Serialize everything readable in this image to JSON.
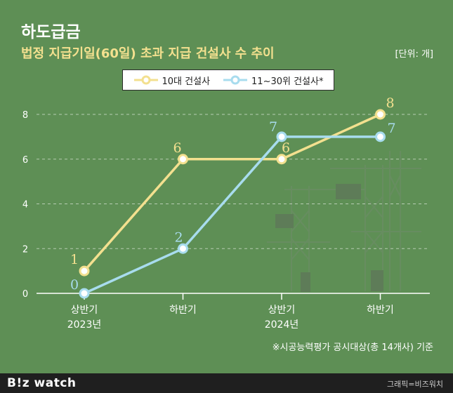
{
  "title": "하도급금",
  "subtitle": "법정 지급기일(60일) 초과 지급 건설사 수 추이",
  "unit": "[단위: 개]",
  "legend": {
    "s1": "10대 건설사",
    "s2": "11~30위 건설사*"
  },
  "x_labels": [
    {
      "line1": "상반기",
      "line2": "2023년"
    },
    {
      "line1": "하반기",
      "line2": ""
    },
    {
      "line1": "상반기",
      "line2": "2024년"
    },
    {
      "line1": "하반기",
      "line2": ""
    }
  ],
  "footnote": "※시공능력평가 공시대상(총 14개사) 기준",
  "brand": "B!z watch",
  "credit": "그래픽=비즈워치",
  "colors": {
    "background": "#5e8f55",
    "series1": "#f3e08f",
    "series2": "#a8dcee",
    "subtitle": "#f3e08f"
  },
  "chart_data": {
    "type": "line",
    "title": "법정 지급기일(60일) 초과 지급 건설사 수 추이",
    "categories": [
      "상반기 2023년",
      "하반기 2023년",
      "상반기 2024년",
      "하반기 2024년"
    ],
    "series": [
      {
        "name": "10대 건설사",
        "values": [
          1,
          6,
          6,
          8
        ]
      },
      {
        "name": "11~30위 건설사*",
        "values": [
          0,
          2,
          7,
          7
        ]
      }
    ],
    "ylim": [
      0,
      8
    ],
    "yticks": [
      0,
      2,
      4,
      6,
      8
    ],
    "xlabel": "",
    "ylabel": "개",
    "grid": true,
    "legend": "top-center"
  }
}
